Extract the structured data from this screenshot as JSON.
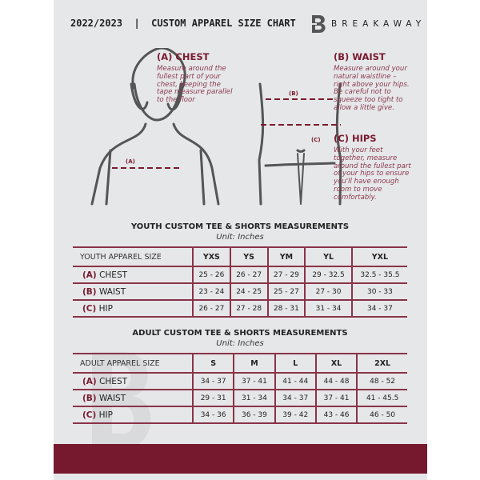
{
  "header": {
    "title": "2022/2023  |  CUSTOM APPAREL SIZE CHART",
    "brand": "BREAKAWAY",
    "logo_letter": "B"
  },
  "measure": {
    "chest": {
      "title": "(A) CHEST",
      "desc": "Measure around the fullest part of your chest, keeping the tape measure parallel to the floor",
      "marker": "(A)"
    },
    "waist": {
      "title": "(B) WAIST",
      "desc": "Measure around your natural waistline – right above your hips. Be careful not to squeeze too tight to allow a little give.",
      "marker": "(B)"
    },
    "hips": {
      "title": "(C) HIPS",
      "desc": "With your feet together, measure around the fullest part of your hips to ensure you'll have enough room to move comfortably.",
      "marker": "(C)"
    }
  },
  "youth": {
    "title": "YOUTH CUSTOM TEE & SHORTS MEASUREMENTS",
    "unit": "Unit: Inches",
    "label": "YOUTH APPAREL SIZE",
    "sizes": [
      "YXS",
      "YS",
      "YM",
      "YL",
      "YXL"
    ],
    "rows": [
      {
        "letter": "(A)",
        "name": "CHEST",
        "values": [
          "25 - 26",
          "26 - 27",
          "27 - 29",
          "29 - 32.5",
          "32.5 - 35.5"
        ]
      },
      {
        "letter": "(B)",
        "name": "WAIST",
        "values": [
          "23 - 24",
          "24 - 25",
          "25 - 27",
          "27 - 30",
          "30 - 33"
        ]
      },
      {
        "letter": "(C)",
        "name": "HIP",
        "values": [
          "26 - 27",
          "27 - 28",
          "28 - 31",
          "31 - 34",
          "34 - 37"
        ]
      }
    ]
  },
  "adult": {
    "title": "ADULT CUSTOM TEE & SHORTS MEASUREMENTS",
    "unit": "Unit: Inches",
    "label": "ADULT APPAREL SIZE",
    "sizes": [
      "S",
      "M",
      "L",
      "XL",
      "2XL"
    ],
    "rows": [
      {
        "letter": "(A)",
        "name": "CHEST",
        "values": [
          "34 - 37",
          "37 - 41",
          "41 - 44",
          "44 - 48",
          "48 - 52"
        ]
      },
      {
        "letter": "(B)",
        "name": "WAIST",
        "values": [
          "29 - 31",
          "31 - 34",
          "34 - 37",
          "37 - 41",
          "41 - 45.5"
        ]
      },
      {
        "letter": "(C)",
        "name": "HIP",
        "values": [
          "34 - 36",
          "36 - 39",
          "39 - 42",
          "43 - 46",
          "46 - 50"
        ]
      }
    ]
  },
  "colors": {
    "accent": "#76192f",
    "panel": "#e6e7e9"
  }
}
